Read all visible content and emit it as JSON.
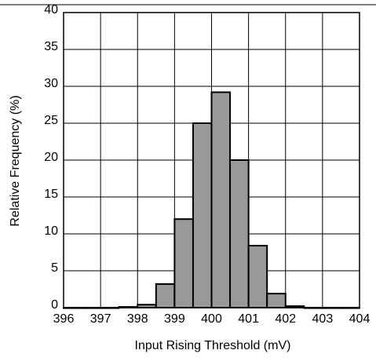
{
  "chart_data": {
    "type": "bar",
    "title": "",
    "xlabel": "Input Rising Threshold (mV)",
    "ylabel": "Relative Frequency (%)",
    "xlim": [
      396,
      404
    ],
    "ylim": [
      0,
      40
    ],
    "x_ticks": [
      396,
      397,
      398,
      399,
      400,
      401,
      402,
      403,
      404
    ],
    "y_ticks": [
      0,
      5,
      10,
      15,
      20,
      25,
      30,
      35,
      40
    ],
    "grid": true,
    "bin_width": 0.5,
    "bins": [
      {
        "start": 396.0,
        "value": 0.0
      },
      {
        "start": 396.5,
        "value": 0.0
      },
      {
        "start": 397.0,
        "value": 0.0
      },
      {
        "start": 397.5,
        "value": 0.1
      },
      {
        "start": 398.0,
        "value": 0.4
      },
      {
        "start": 398.5,
        "value": 3.2
      },
      {
        "start": 399.0,
        "value": 12.0
      },
      {
        "start": 399.5,
        "value": 25.0
      },
      {
        "start": 400.0,
        "value": 29.2
      },
      {
        "start": 400.5,
        "value": 20.0
      },
      {
        "start": 401.0,
        "value": 8.4
      },
      {
        "start": 401.5,
        "value": 1.9
      },
      {
        "start": 402.0,
        "value": 0.2
      },
      {
        "start": 402.5,
        "value": 0.0
      },
      {
        "start": 403.0,
        "value": 0.0
      },
      {
        "start": 403.5,
        "value": 0.0
      }
    ],
    "colors": {
      "bar_fill": "#999999",
      "bar_stroke": "#000000",
      "grid": "#000000",
      "background": "#ffffff"
    }
  }
}
